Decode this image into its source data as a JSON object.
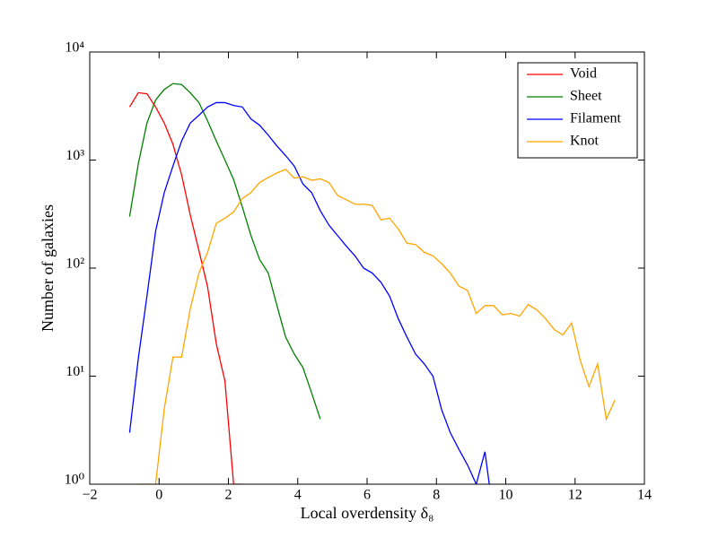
{
  "chart_data": {
    "type": "line",
    "xlabel": "Local overdensity δ₈",
    "ylabel": "Number of galaxies",
    "x": [
      -0.85,
      -0.6,
      -0.35,
      -0.1,
      0.15,
      0.4,
      0.65,
      0.9,
      1.15,
      1.4,
      1.65,
      1.9,
      2.15,
      2.4,
      2.65,
      2.9,
      3.15,
      3.4,
      3.65,
      3.9,
      4.15,
      4.4,
      4.65,
      4.9,
      5.15,
      5.4,
      5.65,
      5.9,
      6.15,
      6.4,
      6.65,
      6.9,
      7.15,
      7.4,
      7.65,
      7.9,
      8.15,
      8.4,
      8.65,
      8.9,
      9.15,
      9.4,
      9.65,
      9.9,
      10.15,
      10.4,
      10.65,
      10.9,
      11.15,
      11.4,
      11.65,
      11.9,
      12.15,
      12.4,
      12.65,
      12.9,
      13.15
    ],
    "series": [
      {
        "name": "Void",
        "color": "#ff0000",
        "values": [
          3100,
          4200,
          4100,
          3100,
          2200,
          1400,
          730,
          310,
          145,
          67,
          20,
          9,
          1,
          1,
          null,
          null,
          null,
          null,
          null,
          null,
          null,
          null,
          null,
          null,
          null,
          null,
          null,
          null,
          null,
          null,
          null,
          null,
          null,
          null,
          null,
          null,
          null,
          null,
          null,
          null,
          null,
          null,
          null,
          null,
          null,
          null,
          null,
          null,
          null,
          null,
          null,
          null,
          null,
          null,
          null,
          null,
          null
        ]
      },
      {
        "name": "Sheet",
        "color": "#008000",
        "values": [
          300,
          920,
          2200,
          3600,
          4500,
          5100,
          5000,
          4200,
          3400,
          2300,
          1500,
          1000,
          660,
          370,
          200,
          120,
          90,
          45,
          23,
          16,
          12,
          7,
          4,
          null,
          null,
          null,
          null,
          null,
          null,
          null,
          null,
          null,
          null,
          null,
          null,
          null,
          null,
          null,
          null,
          null,
          null,
          null,
          null,
          null,
          null,
          null,
          null,
          null,
          null,
          null,
          null,
          null,
          null,
          null,
          null,
          null,
          null
        ]
      },
      {
        "name": "Filament",
        "color": "#0000ff",
        "values": [
          3,
          14.5,
          55,
          220,
          500,
          880,
          1500,
          2200,
          2600,
          3100,
          3400,
          3400,
          3200,
          3100,
          2400,
          2100,
          1700,
          1350,
          1100,
          880,
          600,
          500,
          340,
          250,
          200,
          160,
          130,
          100,
          90,
          74,
          55,
          34,
          23,
          16,
          13,
          10,
          4.9,
          3,
          2.1,
          1.5,
          1,
          2,
          0.5,
          null,
          null,
          null,
          null,
          null,
          null,
          null,
          null,
          null,
          null,
          null,
          null,
          null,
          null
        ]
      },
      {
        "name": "Knot",
        "color": "#ffa500",
        "values": [
          null,
          1,
          1,
          1,
          5,
          15,
          15,
          42,
          90,
          140,
          260,
          290,
          330,
          440,
          500,
          620,
          690,
          760,
          820,
          680,
          700,
          650,
          670,
          620,
          470,
          430,
          390,
          390,
          380,
          280,
          290,
          230,
          170,
          165,
          140,
          130,
          110,
          90,
          68,
          62,
          38,
          45,
          45,
          37,
          38,
          36,
          46,
          41,
          34,
          27,
          24,
          31,
          14,
          8,
          13,
          4,
          6
        ]
      }
    ],
    "xlim": [
      -2,
      14
    ],
    "xticks": [
      {
        "value": -2,
        "label": "−2"
      },
      0,
      2,
      4,
      6,
      8,
      10,
      12,
      14
    ],
    "ylim": [
      1,
      10000
    ],
    "log_y": true,
    "yticks": [
      {
        "value": 1,
        "label": "10⁰"
      },
      {
        "value": 10,
        "label": "10¹"
      },
      {
        "value": 100,
        "label": "10²"
      },
      {
        "value": 1000,
        "label": "10³"
      },
      {
        "value": 10000,
        "label": "10⁴"
      }
    ],
    "legend": "upper right"
  }
}
